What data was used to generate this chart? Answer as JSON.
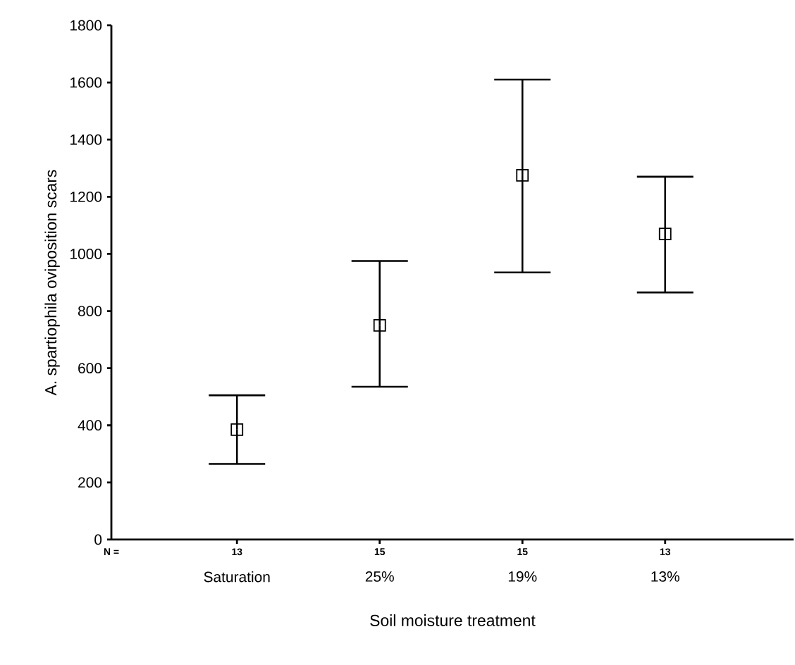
{
  "chart_data": {
    "type": "scatter",
    "xlabel": "Soil moisture treatment",
    "ylabel": "A. spartiophila oviposition scars",
    "categories": [
      "Saturation",
      "25%",
      "19%",
      "13%"
    ],
    "values": [
      385,
      750,
      1275,
      1070
    ],
    "errors": [
      [
        265,
        505
      ],
      [
        535,
        975
      ],
      [
        935,
        1610
      ],
      [
        865,
        1270
      ]
    ],
    "color": "#000000",
    "marker": "square",
    "ylim": [
      0,
      1800
    ],
    "yticks": [
      0,
      200,
      400,
      600,
      800,
      1000,
      1200,
      1400,
      1600,
      1800
    ],
    "annotations": [
      "N =",
      "13",
      "15",
      "15",
      "13"
    ]
  }
}
